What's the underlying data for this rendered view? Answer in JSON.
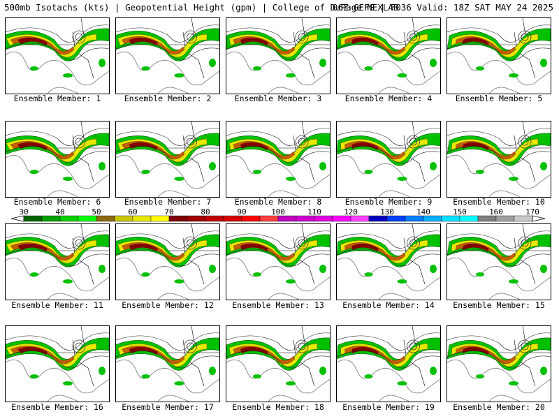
{
  "header": {
    "left_title": "500mb Isotachs (kts) | Geopotential Height (gpm) | College of DuPage NEXLAB",
    "right_title": "06Z GEFS | F036 Valid: 18Z SAT MAY 24 2025"
  },
  "members": [
    {
      "label": "Ensemble Member: 1"
    },
    {
      "label": "Ensemble Member: 2"
    },
    {
      "label": "Ensemble Member: 3"
    },
    {
      "label": "Ensemble Member: 4"
    },
    {
      "label": "Ensemble Member: 5"
    },
    {
      "label": "Ensemble Member: 6"
    },
    {
      "label": "Ensemble Member: 7"
    },
    {
      "label": "Ensemble Member: 8"
    },
    {
      "label": "Ensemble Member: 9"
    },
    {
      "label": "Ensemble Member: 10"
    },
    {
      "label": "Ensemble Member: 11"
    },
    {
      "label": "Ensemble Member: 12"
    },
    {
      "label": "Ensemble Member: 13"
    },
    {
      "label": "Ensemble Member: 14"
    },
    {
      "label": "Ensemble Member: 15"
    },
    {
      "label": "Ensemble Member: 16"
    },
    {
      "label": "Ensemble Member: 17"
    },
    {
      "label": "Ensemble Member: 18"
    },
    {
      "label": "Ensemble Member: 19"
    },
    {
      "label": "Ensemble Member: 20"
    }
  ],
  "colorbar": {
    "labels": [
      "30",
      "40",
      "50",
      "60",
      "70",
      "80",
      "90",
      "100",
      "110",
      "120",
      "130",
      "140",
      "150",
      "160",
      "170"
    ],
    "colors": [
      "#006400",
      "#00a000",
      "#00d000",
      "#00ff00",
      "#8b6914",
      "#c8c800",
      "#e8e800",
      "#ffff00",
      "#800000",
      "#a00000",
      "#c00000",
      "#d80000",
      "#ff0000",
      "#ff4040",
      "#c000c0",
      "#d000d0",
      "#e000e0",
      "#ff00ff",
      "#ff40ff",
      "#0000c0",
      "#0040ff",
      "#0080ff",
      "#00b0ff",
      "#00e0ff",
      "#00ffff",
      "#808080",
      "#a0a0a0",
      "#c8c8c8"
    ]
  }
}
